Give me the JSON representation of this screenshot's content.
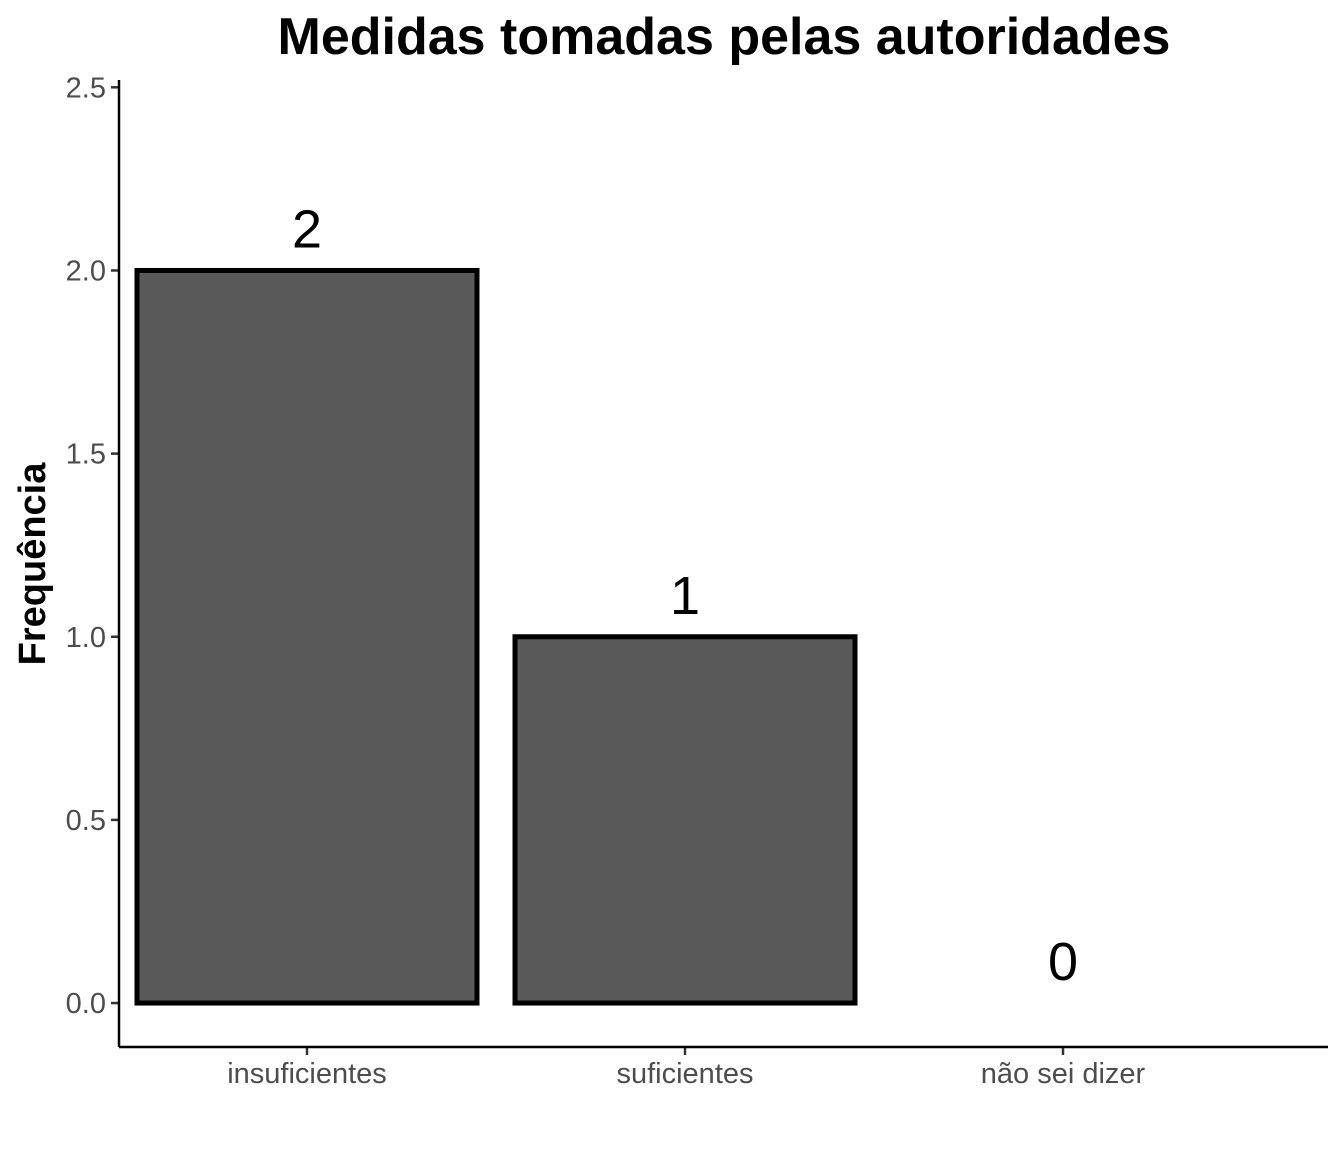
{
  "chart_data": {
    "type": "bar",
    "title": "Medidas tomadas pelas autoridades",
    "xlabel": "",
    "ylabel": "Frequência",
    "categories": [
      "insuficientes",
      "suficientes",
      "não sei dizer"
    ],
    "values": [
      2,
      1,
      0
    ],
    "data_labels": [
      "2",
      "1",
      "0"
    ],
    "ylim": [
      -0.12,
      2.52
    ],
    "yticks": [
      0,
      0.5,
      1,
      1.5,
      2,
      2.5
    ],
    "ytick_labels": [
      "0.0",
      "0.5",
      "1.0",
      "1.5",
      "2.0",
      "2.5"
    ],
    "grid": false,
    "legend": "none",
    "bar_fill": "#595959",
    "bar_outline": "#000000"
  }
}
